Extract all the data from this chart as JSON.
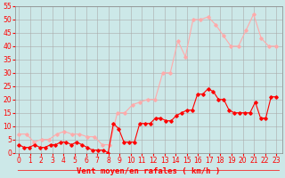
{
  "xlabel": "Vent moyen/en rafales ( km/h )",
  "x_labels": [
    "0",
    "1",
    "2",
    "3",
    "4",
    "5",
    "6",
    "7",
    "8",
    "9",
    "10",
    "11",
    "12",
    "13",
    "14",
    "15",
    "16",
    "17",
    "18",
    "19",
    "20",
    "21",
    "22",
    "23"
  ],
  "x_values": [
    0,
    1,
    2,
    3,
    4,
    5,
    6,
    7,
    8,
    9,
    10,
    11,
    12,
    13,
    14,
    15,
    16,
    17,
    18,
    19,
    20,
    21,
    22,
    23
  ],
  "wind_mean": [
    3,
    2,
    2,
    3,
    2,
    2,
    3,
    3,
    4,
    4,
    3,
    4,
    3,
    2,
    1,
    1,
    1,
    0,
    11,
    9,
    4,
    4,
    4,
    11,
    11,
    11,
    13,
    13,
    12,
    12,
    14,
    15,
    16,
    16,
    22,
    22,
    24,
    23,
    20,
    20,
    16,
    15,
    15,
    15,
    15,
    19,
    13,
    13,
    21,
    21
  ],
  "wind_gusts": [
    7,
    7,
    4,
    5,
    5,
    7,
    8,
    7,
    7,
    6,
    6,
    3,
    3,
    15,
    15,
    18,
    19,
    20,
    20,
    30,
    30,
    42,
    36,
    50,
    50,
    51,
    48,
    44,
    40,
    40,
    46,
    52,
    43,
    40,
    40
  ],
  "mean_color": "#ff0000",
  "gusts_color": "#ffaaaa",
  "bg_color": "#cce8e8",
  "grid_color": "#aaaaaa",
  "ylim": [
    0,
    55
  ],
  "yticks": [
    0,
    5,
    10,
    15,
    20,
    25,
    30,
    35,
    40,
    45,
    50,
    55
  ],
  "marker": "D",
  "marker_size": 1.8,
  "line_width": 0.8,
  "xlabel_color": "#ff0000",
  "tick_color": "#ff0000",
  "xlabel_fontsize": 6.5,
  "tick_fontsize": 5.5
}
